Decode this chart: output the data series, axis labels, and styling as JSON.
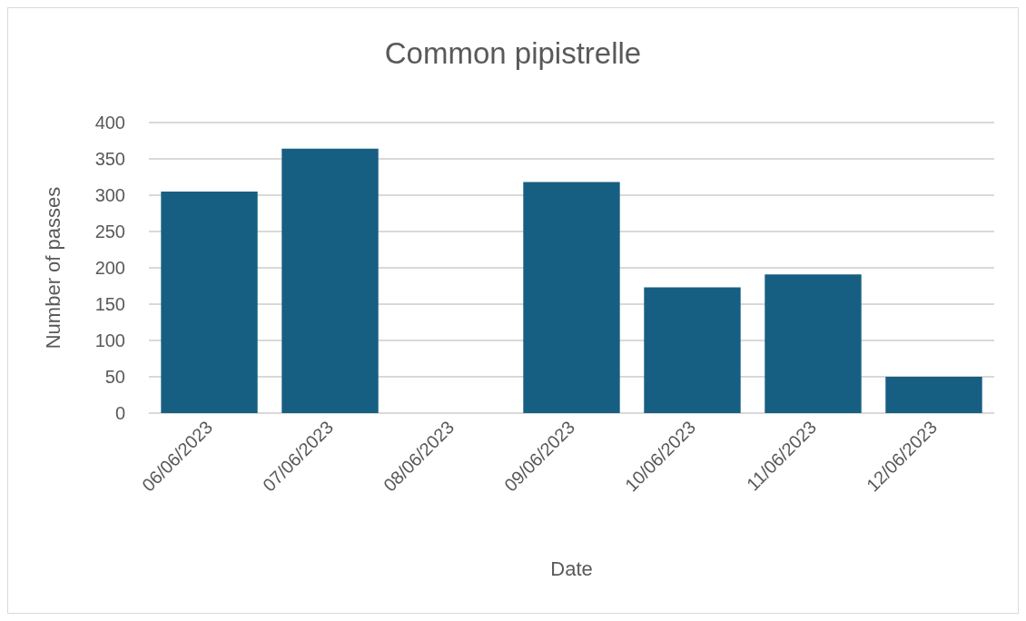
{
  "chart_data": {
    "type": "bar",
    "title": "Common pipistrelle",
    "xlabel": "Date",
    "ylabel": "Number of passes",
    "categories": [
      "06/06/2023",
      "07/06/2023",
      "08/06/2023",
      "09/06/2023",
      "10/06/2023",
      "11/06/2023",
      "12/06/2023"
    ],
    "values": [
      305,
      364,
      0,
      318,
      173,
      191,
      50
    ],
    "color": "#175f82",
    "ylim": [
      0,
      400
    ],
    "yticks": [
      0,
      50,
      100,
      150,
      200,
      250,
      300,
      350,
      400
    ],
    "grid": "y"
  }
}
